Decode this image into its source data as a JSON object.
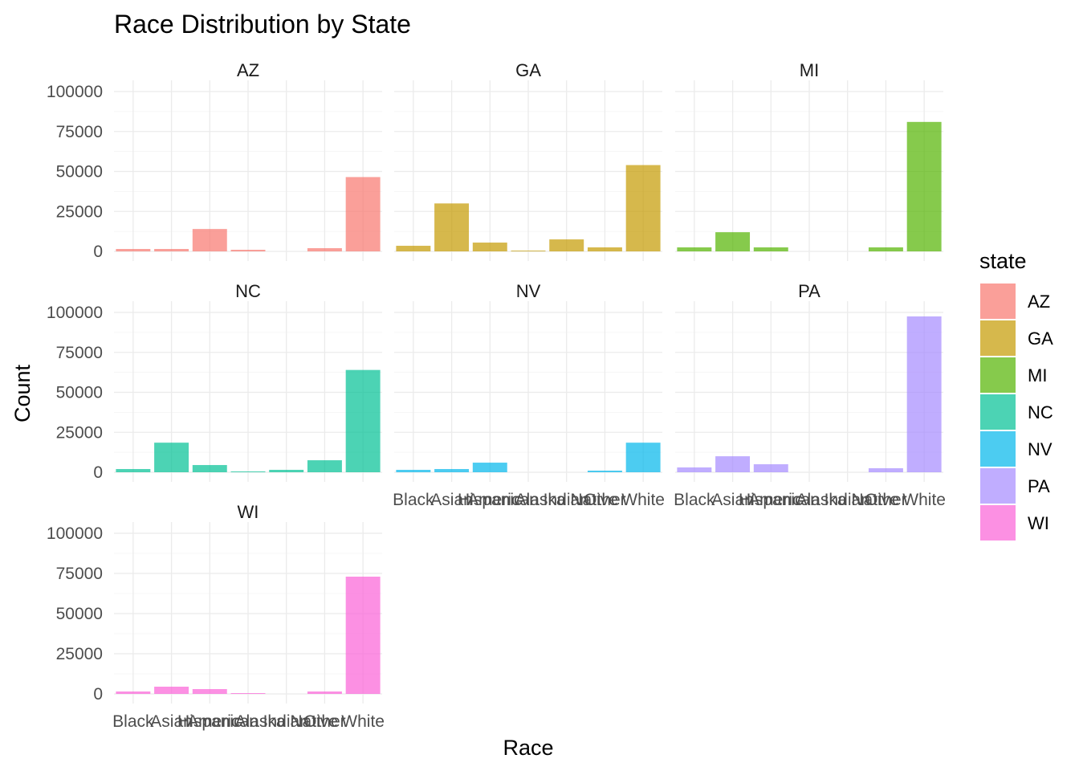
{
  "chart_data": {
    "type": "bar",
    "layout": "faceted",
    "title": "Race Distribution by State",
    "xlabel": "Race",
    "ylabel": "Count",
    "ylim": [
      0,
      100000
    ],
    "yticks": [
      0,
      25000,
      50000,
      75000,
      100000
    ],
    "categories": [
      "Black",
      "Asian",
      "Hispanic",
      "American Indian",
      "Alaska Native",
      "Other",
      "White"
    ],
    "x_tick_labels_printed": [
      "Black",
      "Asian",
      "Hispanic",
      "American Indian",
      "Alaska Native",
      "Other",
      "White"
    ],
    "legend": {
      "title": "state",
      "placement": "right",
      "entries": [
        "AZ",
        "GA",
        "MI",
        "NC",
        "NV",
        "PA",
        "WI"
      ]
    },
    "grid": true,
    "facets": [
      {
        "name": "AZ",
        "color": "#F8766D",
        "values": [
          1500,
          1500,
          14000,
          1000,
          0,
          2000,
          46500
        ]
      },
      {
        "name": "GA",
        "color": "#C49A00",
        "values": [
          3500,
          30000,
          5500,
          500,
          7500,
          2500,
          54000
        ]
      },
      {
        "name": "MI",
        "color": "#53B400",
        "values": [
          2500,
          12000,
          2500,
          0,
          0,
          2500,
          81000
        ]
      },
      {
        "name": "NC",
        "color": "#00C094",
        "values": [
          2000,
          18500,
          4500,
          500,
          1500,
          7500,
          64000
        ]
      },
      {
        "name": "NV",
        "color": "#00B6EB",
        "values": [
          1500,
          2000,
          6000,
          0,
          0,
          1000,
          18500
        ]
      },
      {
        "name": "PA",
        "color": "#A58AFF",
        "values": [
          3000,
          10000,
          5000,
          0,
          0,
          2500,
          97500
        ]
      },
      {
        "name": "WI",
        "color": "#FB61D7",
        "values": [
          1500,
          4500,
          3000,
          500,
          0,
          1500,
          73000
        ]
      }
    ],
    "bar_opacity": 0.7
  }
}
